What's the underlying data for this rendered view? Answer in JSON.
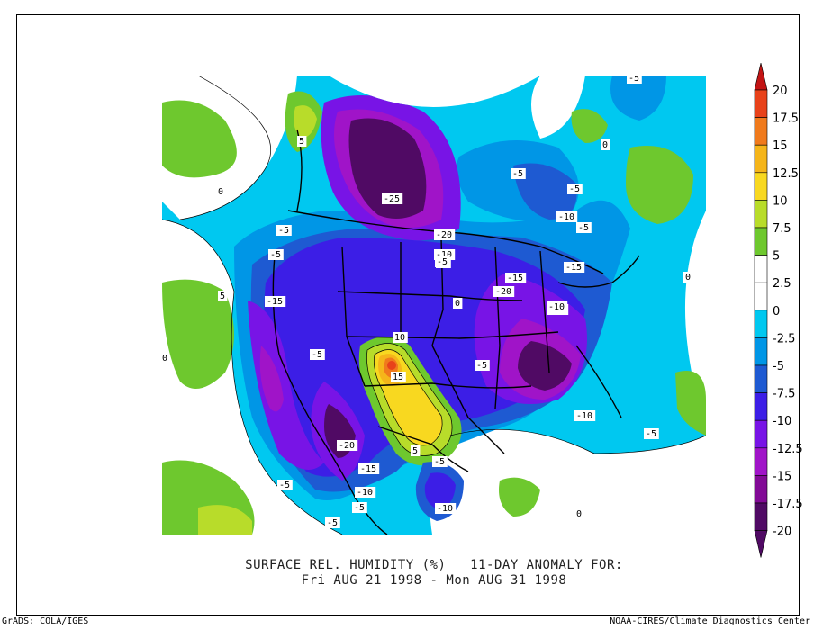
{
  "title": {
    "line1": "SURFACE REL. HUMIDITY (%)   11-DAY ANOMALY FOR:",
    "line2": "Fri AUG 21 1998 - Mon AUG 31 1998"
  },
  "credits": {
    "left": "GrADS: COLA/IGES",
    "right": "NOAA-CIRES/Climate Diagnostics Center"
  },
  "colorbar": {
    "levels": [
      {
        "label": "20",
        "color": "#c21414"
      },
      {
        "label": "17.5",
        "color": "#e8421a"
      },
      {
        "label": "15",
        "color": "#f07a1c"
      },
      {
        "label": "12.5",
        "color": "#f5b51a"
      },
      {
        "label": "10",
        "color": "#f8d820"
      },
      {
        "label": "7.5",
        "color": "#b8dc2a"
      },
      {
        "label": "5",
        "color": "#6ec82e"
      },
      {
        "label": "2.5",
        "color": "#ffffff"
      },
      {
        "label": "0",
        "color": "#ffffff"
      },
      {
        "label": "-2.5",
        "color": "#00c8f0"
      },
      {
        "label": "-5",
        "color": "#0096e6"
      },
      {
        "label": "-7.5",
        "color": "#1e5ad2"
      },
      {
        "label": "-10",
        "color": "#3c1ee6"
      },
      {
        "label": "-12.5",
        "color": "#7814e6"
      },
      {
        "label": "-15",
        "color": "#a014c8"
      },
      {
        "label": "-17.5",
        "color": "#820a96"
      },
      {
        "label": "-20",
        "color": "#500a64"
      }
    ],
    "top_color": "#c21414",
    "bottom_color": "#500a64"
  },
  "map_labels": [
    {
      "text": "-25"
    },
    {
      "text": "-20"
    },
    {
      "text": "-10"
    },
    {
      "text": "-5"
    },
    {
      "text": "-15"
    },
    {
      "text": "-10"
    },
    {
      "text": "-15"
    },
    {
      "text": "-20"
    },
    {
      "text": "-5"
    },
    {
      "text": "-10"
    },
    {
      "text": "-5"
    },
    {
      "text": "-5"
    },
    {
      "text": "-10"
    },
    {
      "text": "-5"
    },
    {
      "text": "-5"
    },
    {
      "text": "-15"
    },
    {
      "text": "-5"
    },
    {
      "text": "10"
    },
    {
      "text": "15"
    },
    {
      "text": "-5"
    },
    {
      "text": "-20"
    },
    {
      "text": "-15"
    },
    {
      "text": "-10"
    },
    {
      "text": "-5"
    },
    {
      "text": "-5"
    },
    {
      "text": "-10"
    },
    {
      "text": "-5"
    },
    {
      "text": "5"
    },
    {
      "text": "-5"
    },
    {
      "text": "-10"
    },
    {
      "text": "-5"
    },
    {
      "text": "-5"
    },
    {
      "text": "5"
    },
    {
      "text": "5"
    },
    {
      "text": "-5"
    },
    {
      "text": "0"
    },
    {
      "text": "0"
    },
    {
      "text": "0"
    },
    {
      "text": "0"
    },
    {
      "text": "0"
    },
    {
      "text": "0"
    }
  ]
}
